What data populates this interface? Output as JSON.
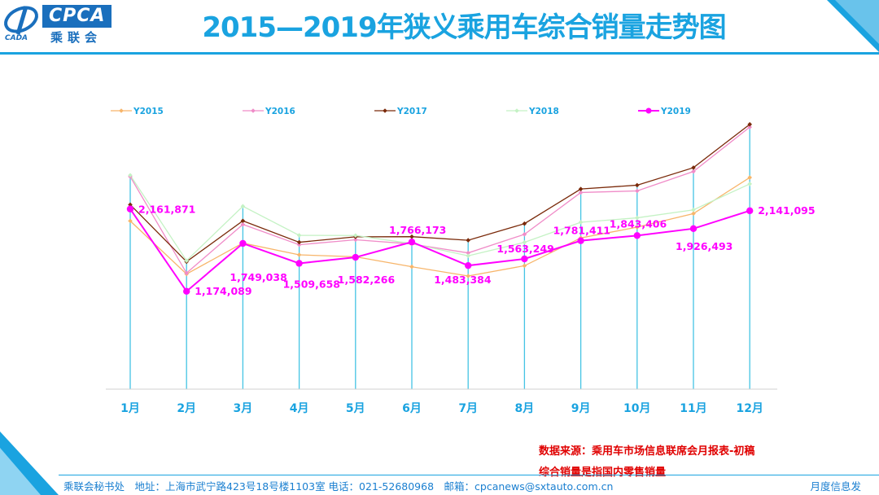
{
  "header": {
    "title": "2015—2019年狭义乘用车综合销量走势图",
    "logo_text": "CPCA",
    "logo_cn": "乘联会",
    "logo_sub": "CADA"
  },
  "chart_data": {
    "type": "line",
    "categories": [
      "1月",
      "2月",
      "3月",
      "4月",
      "5月",
      "6月",
      "7月",
      "8月",
      "9月",
      "10月",
      "11月",
      "12月"
    ],
    "series": [
      {
        "name": "Y2015",
        "color": "#f7b56a",
        "values": [
          2019000,
          1382000,
          1753000,
          1612000,
          1589000,
          1469000,
          1358000,
          1481000,
          1815000,
          1944000,
          2107000,
          2540000
        ],
        "labels": []
      },
      {
        "name": "Y2016",
        "color": "#f08cc8",
        "values": [
          2551000,
          1393000,
          1977000,
          1733000,
          1793000,
          1742000,
          1635000,
          1858000,
          2360000,
          2379000,
          2612000,
          3145000
        ],
        "labels": []
      },
      {
        "name": "Y2017",
        "color": "#7a2a0a",
        "values": [
          2214000,
          1530000,
          2020000,
          1763000,
          1828000,
          1830000,
          1787000,
          1986000,
          2402000,
          2448000,
          2658000,
          3178000
        ],
        "labels": []
      },
      {
        "name": "Y2018",
        "color": "#c4f2c4",
        "values": [
          2567000,
          1542000,
          2195000,
          1846000,
          1844000,
          1747000,
          1600000,
          1762000,
          2003000,
          2056000,
          2152000,
          2463000
        ],
        "labels": []
      },
      {
        "name": "Y2019",
        "color": "#ff00ff",
        "values": [
          2161871,
          1174089,
          1749038,
          1509658,
          1582266,
          1766173,
          1483384,
          1563249,
          1781411,
          1843406,
          1926493,
          2141095
        ],
        "labels": [
          "2,161,871",
          "1,174,089",
          "1,749,038",
          "1,509,658",
          "1,582,266",
          "1,766,173",
          "1,483,384",
          "1,563,249",
          "1,781,411",
          "1,843,406",
          "1,926,493",
          "2,141,095"
        ]
      }
    ],
    "ylim": [
      0,
      3400000
    ],
    "grid": false,
    "legend_position": "top"
  },
  "footer": {
    "source_line1": "数据来源：乘用车市场信息联席会月报表-初稿",
    "source_line2": "综合销量是指国内零售销量",
    "address": "乘联会秘书处　地址：上海市武宁路423号18号楼1103室  电话：021-52680968　邮箱：cpcanews@sxtauto.com.cn",
    "right_note": "月度信息发"
  },
  "colors": {
    "accent": "#1aa3e0",
    "drop_lines": "#44c4e4",
    "label_color": "#ff00ff"
  }
}
